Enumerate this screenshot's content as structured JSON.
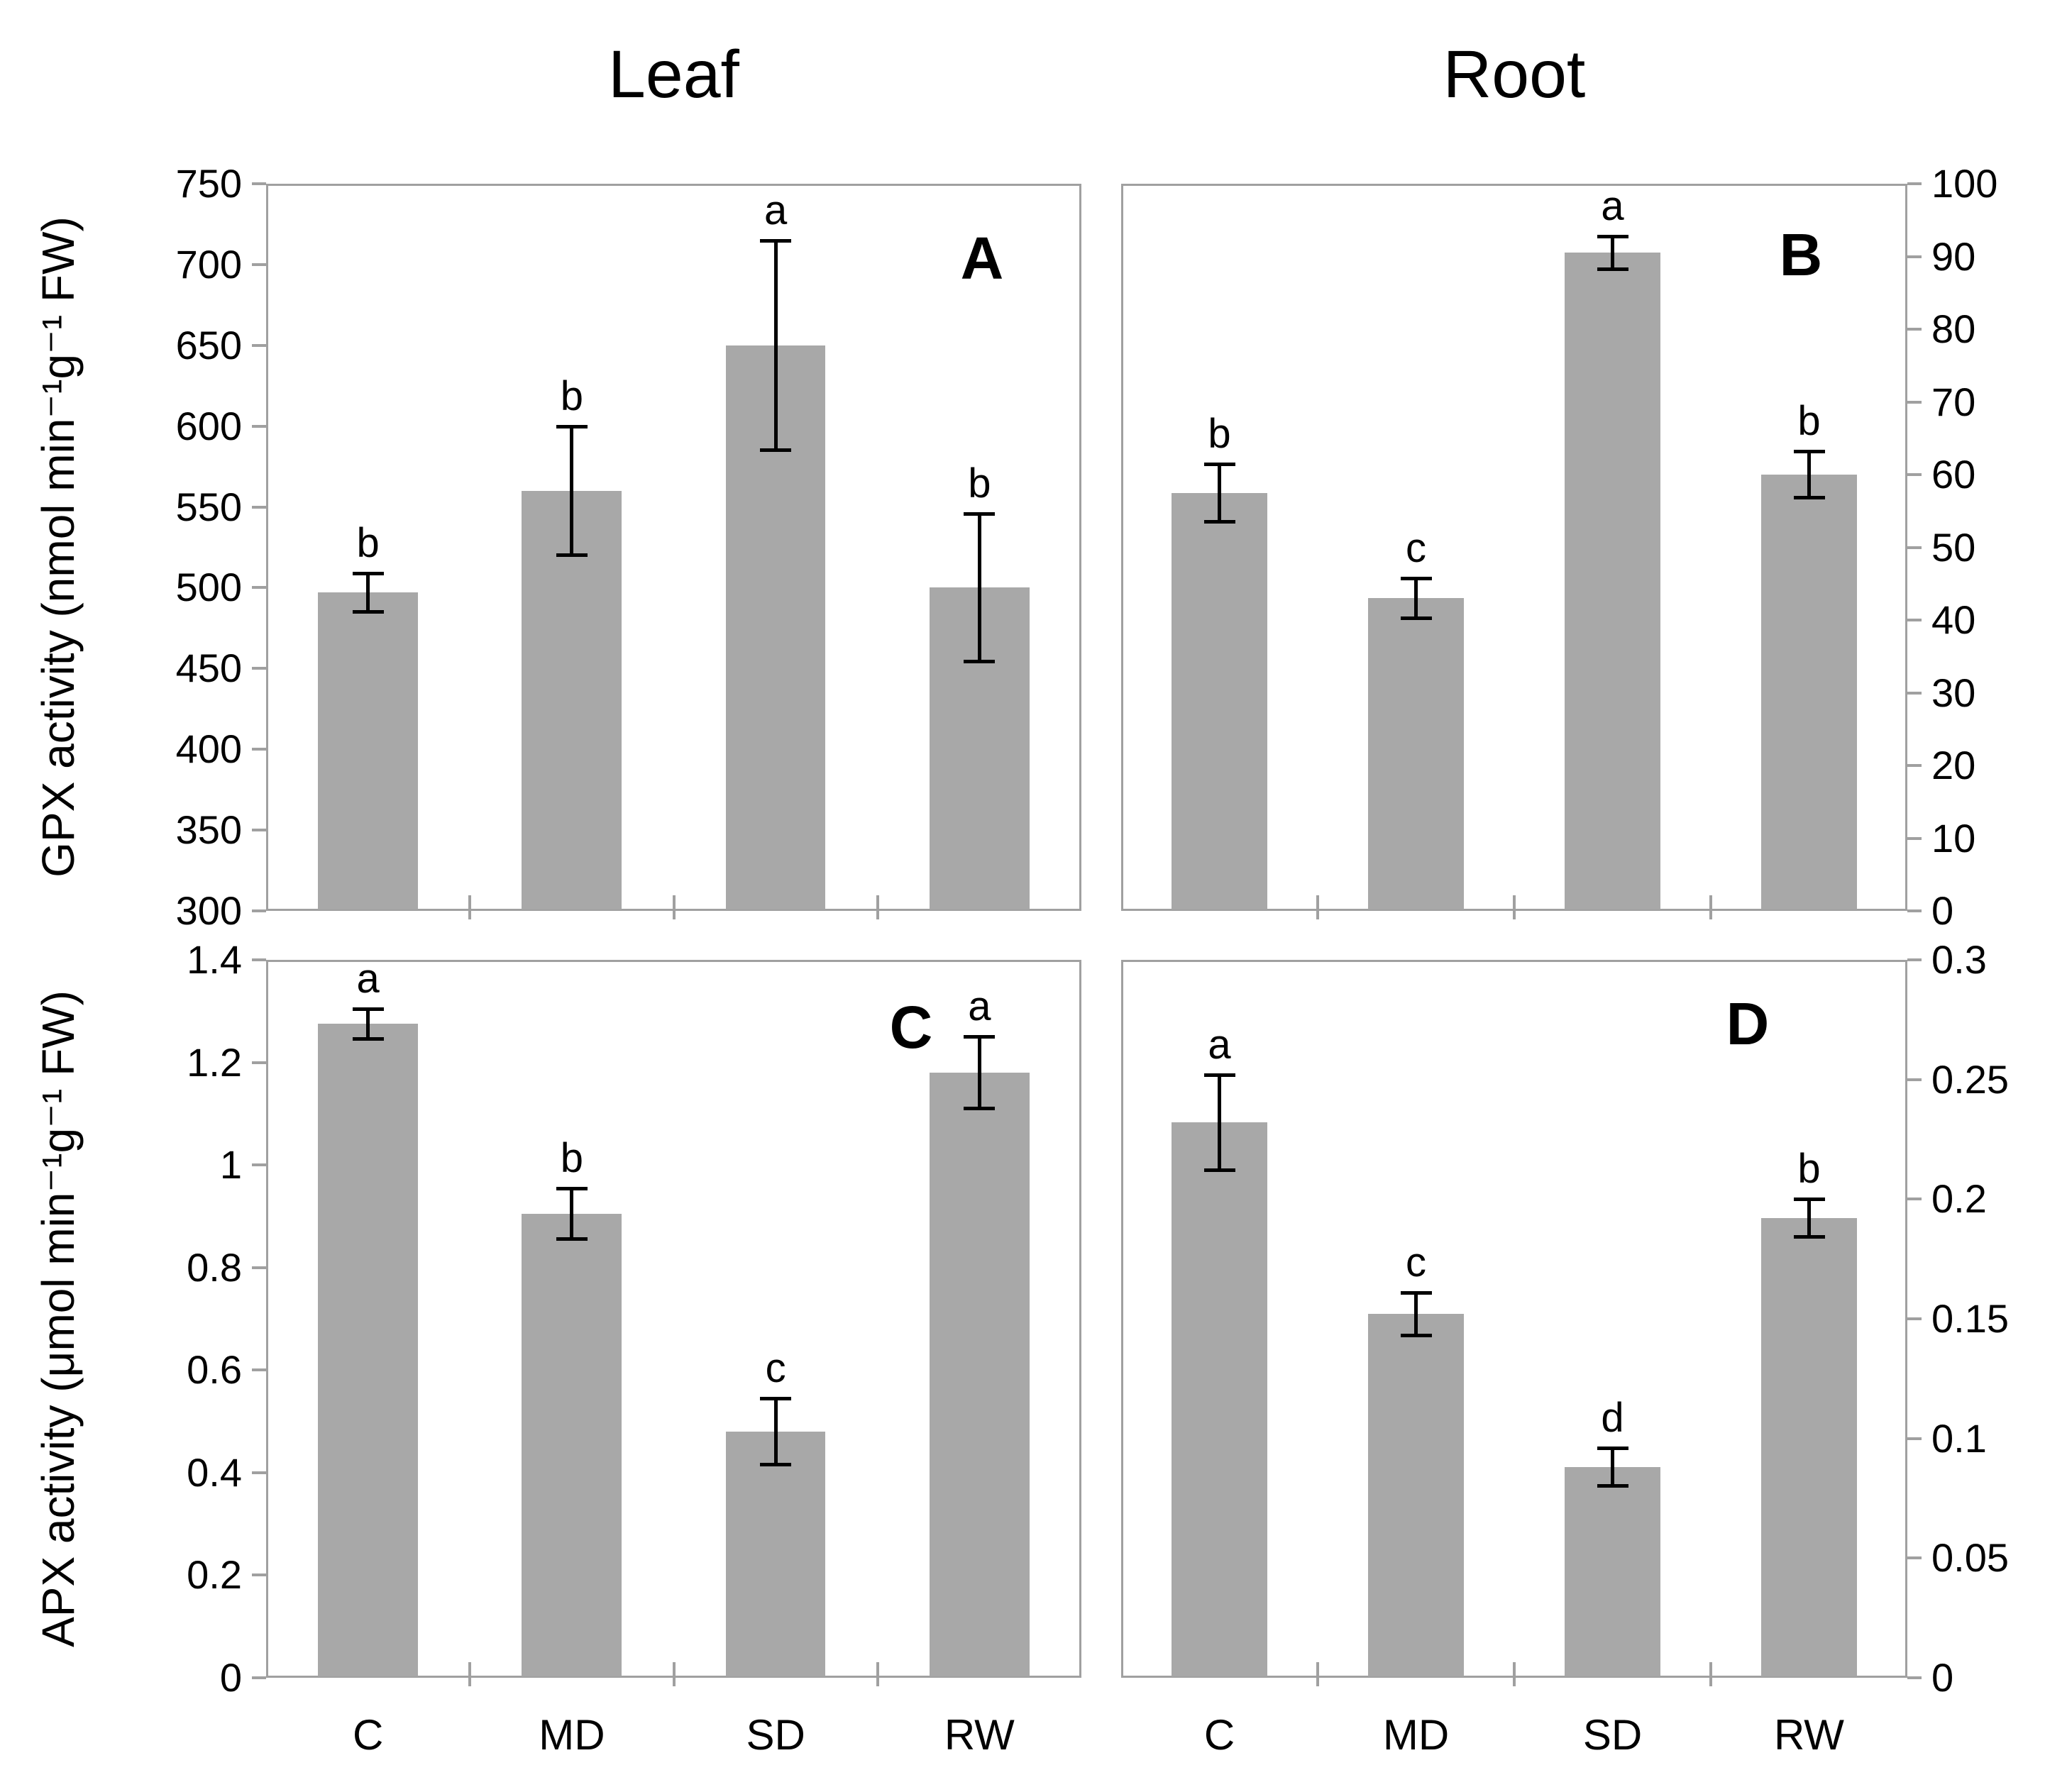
{
  "figure": {
    "column_titles": [
      {
        "label": "Leaf"
      },
      {
        "label": "Root"
      }
    ],
    "row_ylabels": [
      {
        "label": "GPX activity (nmol min⁻¹g⁻¹ FW)"
      },
      {
        "label": "APX activity (μmol min⁻¹g⁻¹ FW)"
      }
    ],
    "colors": {
      "bar_fill": "#a8a8a8",
      "axis_line": "#a0a0a0",
      "error_bar": "#000000",
      "text": "#000000",
      "background": "#ffffff"
    }
  },
  "chart_data": {
    "type": "bar",
    "categories": [
      "C",
      "MD",
      "SD",
      "RW"
    ],
    "grid": false,
    "legend": "none",
    "panels": [
      {
        "panel_label": "A",
        "tissue": "Leaf",
        "enzyme": "GPX",
        "ylabel": "GPX activity (nmol min⁻¹g⁻¹ FW)",
        "y_axis_side": "left",
        "ylim": [
          300,
          750
        ],
        "ytick_step": 50,
        "ytick_labels": [
          "750",
          "700",
          "650",
          "600",
          "550",
          "500",
          "450",
          "400",
          "350",
          "300"
        ],
        "values": [
          497,
          560,
          650,
          500
        ],
        "error_bars": [
          12,
          40,
          65,
          46
        ],
        "sig_letters": [
          "b",
          "b",
          "a",
          "b"
        ]
      },
      {
        "panel_label": "B",
        "tissue": "Root",
        "enzyme": "GPX",
        "y_axis_side": "right",
        "ylim": [
          0,
          100
        ],
        "ytick_step": 10,
        "ytick_labels": [
          "100",
          "90",
          "80",
          "70",
          "60",
          "50",
          "40",
          "30",
          "20",
          "10",
          "0"
        ],
        "values": [
          57.5,
          43,
          90.5,
          60
        ],
        "error_bars": [
          4,
          2.8,
          2.3,
          3.2
        ],
        "sig_letters": [
          "b",
          "c",
          "a",
          "b"
        ]
      },
      {
        "panel_label": "C",
        "tissue": "Leaf",
        "enzyme": "APX",
        "ylabel": "APX activity (μmol min⁻¹g⁻¹ FW)",
        "y_axis_side": "left",
        "ylim": [
          0,
          1.4
        ],
        "ytick_step": 0.2,
        "ytick_labels": [
          "1.4",
          "1.2",
          "1",
          "0.8",
          "0.6",
          "0.4",
          "0.2",
          "0"
        ],
        "values": [
          1.275,
          0.905,
          0.48,
          1.18
        ],
        "error_bars": [
          0.03,
          0.05,
          0.065,
          0.07
        ],
        "sig_letters": [
          "a",
          "b",
          "c",
          "a"
        ]
      },
      {
        "panel_label": "D",
        "tissue": "Root",
        "enzyme": "APX",
        "y_axis_side": "right",
        "ylim": [
          0,
          0.3
        ],
        "ytick_step": 0.05,
        "ytick_labels": [
          "0.3",
          "0.25",
          "0.2",
          "0.15",
          "0.1",
          "0.05",
          "0"
        ],
        "values": [
          0.232,
          0.152,
          0.088,
          0.192
        ],
        "error_bars": [
          0.02,
          0.009,
          0.008,
          0.008
        ],
        "sig_letters": [
          "a",
          "c",
          "d",
          "b"
        ]
      }
    ]
  }
}
